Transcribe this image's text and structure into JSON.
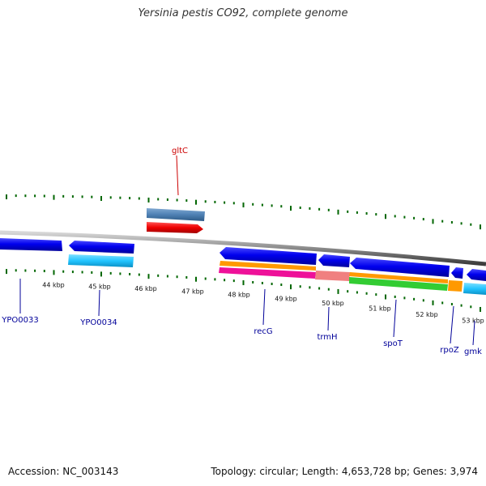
{
  "title": "Yersinia pestis CO92, complete genome",
  "footer": {
    "accession": "Accession: NC_003143",
    "topology": "Topology: circular; Length: 4,653,728 bp; Genes: 3,974"
  },
  "scale_labels": [
    "44 kbp",
    "45 kbp",
    "46 kbp",
    "47 kbp",
    "48 kbp",
    "49 kbp",
    "50 kbp",
    "51 kbp",
    "52 kbp",
    "53 kbp"
  ],
  "gene_labels": {
    "gltC": "gltC",
    "YPO0033": "YPO0033",
    "YPO0034": "YPO0034",
    "recG": "recG",
    "trmH": "trmH",
    "spoT": "spoT",
    "rpoZ": "rpoZ",
    "gmk": "gmk"
  },
  "colors": {
    "forward_label": "#cc0000",
    "reverse_label": "#000099",
    "cds": "#0000ee",
    "cds_light": "#33ccff",
    "steel": "#4f81b4",
    "red": "#ee0000",
    "orange": "#ff9900",
    "magenta": "#ee1199",
    "salmon": "#f08080",
    "green": "#33cc33",
    "tick": "#006600",
    "backbone": "#777777"
  }
}
